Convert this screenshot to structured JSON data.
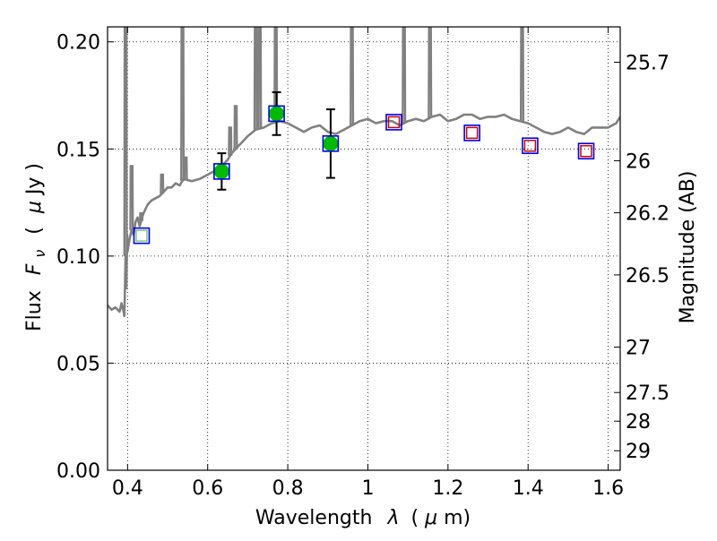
{
  "chart_data": {
    "type": "scatter",
    "xlabel_text": "Wavelength",
    "xlabel_symbol": "λ",
    "xlabel_unit_open": "(",
    "xlabel_unit_symbol": "μ",
    "xlabel_unit_text": "m)",
    "ylabel_text": "Flux",
    "ylabel_symbol": "F",
    "ylabel_subscript": "ν",
    "ylabel_unit_open": "(",
    "ylabel_unit_symbol": "μ",
    "ylabel_unit_text": "Jy )",
    "y2label": "Magnitude (AB)",
    "xlim": [
      0.35,
      1.63
    ],
    "ylim": [
      0.0,
      0.207
    ],
    "grid": true,
    "x_ticks": [
      {
        "value": 0.4,
        "label": "0.4"
      },
      {
        "value": 0.6,
        "label": "0.6"
      },
      {
        "value": 0.8,
        "label": "0.8"
      },
      {
        "value": 1.0,
        "label": "1"
      },
      {
        "value": 1.2,
        "label": "1.2"
      },
      {
        "value": 1.4,
        "label": "1.4"
      },
      {
        "value": 1.6,
        "label": "1.6"
      }
    ],
    "y_ticks": [
      {
        "value": 0.0,
        "label": "0.00"
      },
      {
        "value": 0.05,
        "label": "0.05"
      },
      {
        "value": 0.1,
        "label": "0.10"
      },
      {
        "value": 0.15,
        "label": "0.15"
      },
      {
        "value": 0.2,
        "label": "0.20"
      }
    ],
    "y2_ticks": [
      {
        "flux": 0.1905,
        "label": "25.7"
      },
      {
        "flux": 0.1445,
        "label": "26"
      },
      {
        "flux": 0.1202,
        "label": "26.2"
      },
      {
        "flux": 0.0912,
        "label": "26.5"
      },
      {
        "flux": 0.0575,
        "label": "27"
      },
      {
        "flux": 0.0363,
        "label": "27.5"
      },
      {
        "flux": 0.0229,
        "label": "28"
      },
      {
        "flux": 0.0091,
        "label": "29"
      }
    ],
    "observed": {
      "x": [
        0.635,
        0.772,
        0.907
      ],
      "y": [
        0.1395,
        0.1665,
        0.1525
      ],
      "err": [
        0.0085,
        0.01,
        0.016
      ],
      "color": "#00bb00"
    },
    "model_photometry": {
      "x": [
        0.435,
        0.635,
        0.772,
        0.907,
        1.065,
        1.26,
        1.405,
        1.545
      ],
      "y": [
        0.1095,
        0.1395,
        0.1665,
        0.1525,
        0.1625,
        0.1575,
        0.1515,
        0.149
      ],
      "edge_color": "#0000ee"
    },
    "upper_points": {
      "x": [
        0.435,
        1.065,
        1.26,
        1.405,
        1.545
      ],
      "y": [
        0.1095,
        0.1625,
        0.1575,
        0.1515,
        0.149
      ],
      "edge_color": "#cc0000"
    },
    "template_spectrum": {
      "color": "#808080",
      "x": [
        0.35,
        0.36,
        0.37,
        0.38,
        0.385,
        0.39,
        0.392,
        0.395,
        0.397,
        0.399,
        0.4,
        0.405,
        0.41,
        0.415,
        0.42,
        0.425,
        0.43,
        0.44,
        0.45,
        0.46,
        0.47,
        0.48,
        0.49,
        0.5,
        0.51,
        0.52,
        0.53,
        0.54,
        0.56,
        0.58,
        0.6,
        0.62,
        0.64,
        0.65,
        0.66,
        0.68,
        0.7,
        0.72,
        0.74,
        0.76,
        0.78,
        0.8,
        0.82,
        0.84,
        0.86,
        0.88,
        0.9,
        0.92,
        0.94,
        0.96,
        0.98,
        1.0,
        1.02,
        1.04,
        1.06,
        1.08,
        1.1,
        1.12,
        1.14,
        1.16,
        1.18,
        1.2,
        1.22,
        1.24,
        1.26,
        1.28,
        1.3,
        1.32,
        1.34,
        1.36,
        1.38,
        1.4,
        1.42,
        1.44,
        1.46,
        1.48,
        1.5,
        1.52,
        1.54,
        1.56,
        1.58,
        1.6,
        1.62,
        1.63
      ],
      "y": [
        0.077,
        0.075,
        0.076,
        0.074,
        0.078,
        0.074,
        0.072,
        0.1,
        0.085,
        0.11,
        0.102,
        0.108,
        0.112,
        0.11,
        0.116,
        0.118,
        0.114,
        0.12,
        0.124,
        0.126,
        0.127,
        0.128,
        0.13,
        0.132,
        0.132,
        0.134,
        0.133,
        0.136,
        0.135,
        0.136,
        0.138,
        0.14,
        0.143,
        0.145,
        0.148,
        0.152,
        0.156,
        0.159,
        0.16,
        0.162,
        0.163,
        0.162,
        0.16,
        0.158,
        0.16,
        0.161,
        0.158,
        0.157,
        0.159,
        0.161,
        0.163,
        0.164,
        0.162,
        0.163,
        0.163,
        0.161,
        0.163,
        0.164,
        0.163,
        0.165,
        0.166,
        0.163,
        0.164,
        0.166,
        0.166,
        0.164,
        0.165,
        0.165,
        0.166,
        0.164,
        0.163,
        0.162,
        0.16,
        0.158,
        0.157,
        0.158,
        0.16,
        0.158,
        0.157,
        0.16,
        0.16,
        0.16,
        0.162,
        0.165
      ]
    },
    "emission_lines": [
      {
        "x": 0.395,
        "top": 0.207
      },
      {
        "x": 0.41,
        "top": 0.142
      },
      {
        "x": 0.434,
        "top": 0.12
      },
      {
        "x": 0.486,
        "top": 0.138
      },
      {
        "x": 0.537,
        "top": 0.207
      },
      {
        "x": 0.545,
        "top": 0.146
      },
      {
        "x": 0.656,
        "top": 0.16
      },
      {
        "x": 0.67,
        "top": 0.17
      },
      {
        "x": 0.72,
        "top": 0.207
      },
      {
        "x": 0.73,
        "top": 0.207
      },
      {
        "x": 0.77,
        "top": 0.207
      },
      {
        "x": 0.96,
        "top": 0.207
      },
      {
        "x": 1.09,
        "top": 0.207
      },
      {
        "x": 1.155,
        "top": 0.207
      },
      {
        "x": 1.385,
        "top": 0.207
      }
    ]
  }
}
